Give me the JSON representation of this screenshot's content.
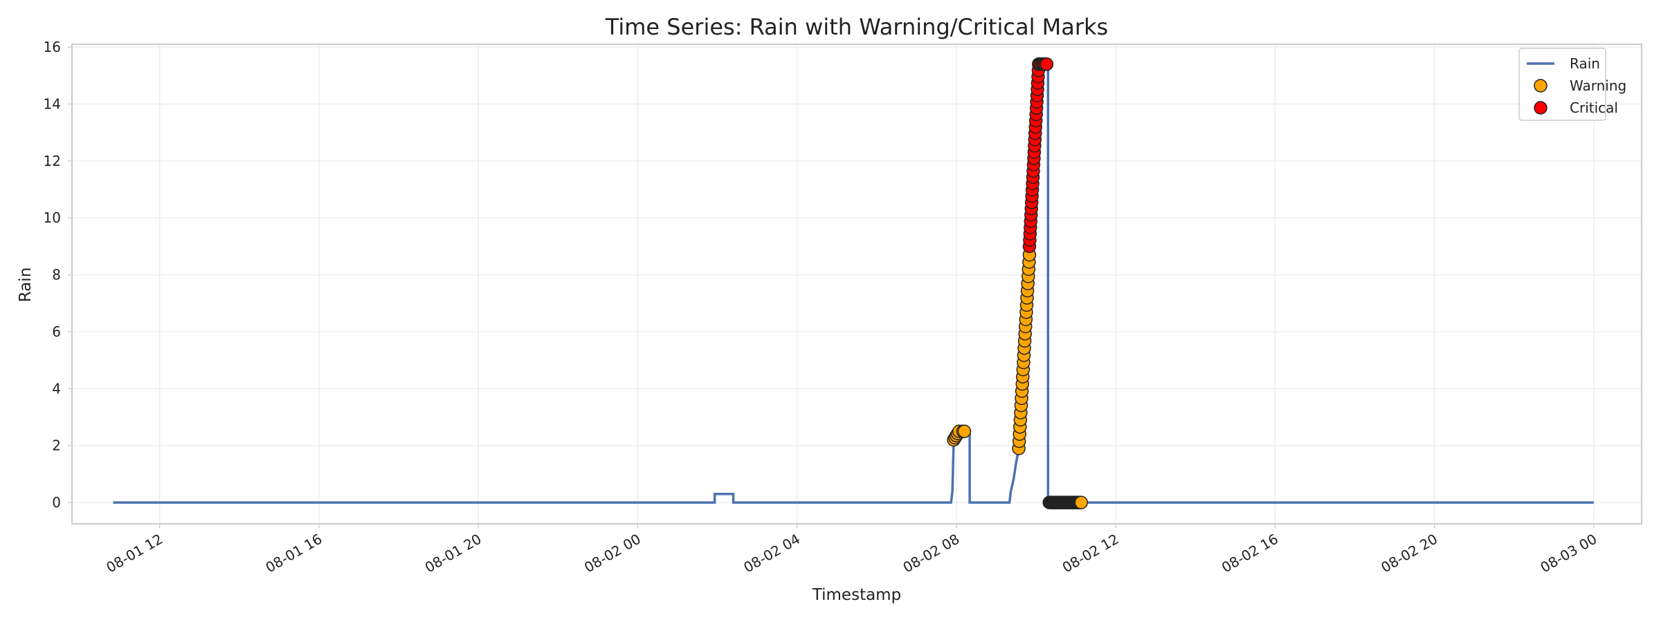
{
  "chart_data": {
    "type": "line",
    "title": "Time Series: Rain with Warning/Critical Marks",
    "xlabel": "Timestamp",
    "ylabel": "Rain",
    "xlim": [
      "2025-08-01 09:48",
      "2025-08-03 01:12"
    ],
    "ylim": [
      -0.75,
      16.1
    ],
    "grid": true,
    "legend_position": "top-right",
    "x_ticks": [
      {
        "label": "08-01 12",
        "t": "2025-08-01 12:00"
      },
      {
        "label": "08-01 16",
        "t": "2025-08-01 16:00"
      },
      {
        "label": "08-01 20",
        "t": "2025-08-01 20:00"
      },
      {
        "label": "08-02 00",
        "t": "2025-08-02 00:00"
      },
      {
        "label": "08-02 04",
        "t": "2025-08-02 04:00"
      },
      {
        "label": "08-02 08",
        "t": "2025-08-02 08:00"
      },
      {
        "label": "08-02 12",
        "t": "2025-08-02 12:00"
      },
      {
        "label": "08-02 16",
        "t": "2025-08-02 16:00"
      },
      {
        "label": "08-02 20",
        "t": "2025-08-02 20:00"
      },
      {
        "label": "08-03 00",
        "t": "2025-08-03 00:00"
      }
    ],
    "y_ticks": [
      0,
      2,
      4,
      6,
      8,
      10,
      12,
      14,
      16
    ],
    "series": [
      {
        "name": "Rain",
        "color": "#4c72b0",
        "step": true,
        "points": [
          [
            "2025-08-01 10:50",
            0
          ],
          [
            "2025-08-02 01:56",
            0
          ],
          [
            "2025-08-02 01:56",
            0.3
          ],
          [
            "2025-08-02 02:24",
            0.3
          ],
          [
            "2025-08-02 02:24",
            0
          ],
          [
            "2025-08-02 07:52",
            0
          ],
          [
            "2025-08-02 07:54",
            0.4
          ],
          [
            "2025-08-02 07:56",
            2.2
          ],
          [
            "2025-08-02 08:00",
            2.5
          ],
          [
            "2025-08-02 08:20",
            2.5
          ],
          [
            "2025-08-02 08:20",
            0
          ],
          [
            "2025-08-02 09:20",
            0
          ],
          [
            "2025-08-02 09:22",
            0.4
          ],
          [
            "2025-08-02 09:26",
            0.8
          ],
          [
            "2025-08-02 09:30",
            1.4
          ],
          [
            "2025-08-02 09:34",
            1.9
          ],
          [
            "2025-08-02 09:40",
            4.0
          ],
          [
            "2025-08-02 09:46",
            7.0
          ],
          [
            "2025-08-02 09:50",
            9.5
          ],
          [
            "2025-08-02 09:54",
            12.5
          ],
          [
            "2025-08-02 09:58",
            14.5
          ],
          [
            "2025-08-02 10:04",
            15.4
          ],
          [
            "2025-08-02 10:18",
            15.4
          ],
          [
            "2025-08-02 10:18",
            0
          ],
          [
            "2025-08-03 00:00",
            0
          ]
        ]
      },
      {
        "name": "Warning",
        "type": "scatter",
        "color": "#ffa500",
        "edge_color": "#222222",
        "groups": [
          {
            "start": "2025-08-02 07:56",
            "end": "2025-08-02 08:04",
            "y_start": 2.2,
            "y_end": 2.5,
            "count": 5
          },
          {
            "start": "2025-08-02 08:10",
            "end": "2025-08-02 08:12",
            "y_start": 2.5,
            "y_end": 2.5,
            "count": 2
          },
          {
            "start": "2025-08-02 09:34",
            "end": "2025-08-02 09:50",
            "y_start": 1.9,
            "y_end": 8.7,
            "count": 28
          },
          {
            "start": "2025-08-02 10:20",
            "end": "2025-08-02 11:08",
            "y_start": 0,
            "y_end": 0,
            "count": 40
          }
        ]
      },
      {
        "name": "Critical",
        "type": "scatter",
        "color": "#ff0000",
        "edge_color": "#222222",
        "groups": [
          {
            "start": "2025-08-02 09:50",
            "end": "2025-08-02 10:04",
            "y_start": 9.0,
            "y_end": 15.4,
            "count": 30
          },
          {
            "start": "2025-08-02 10:04",
            "end": "2025-08-02 10:16",
            "y_start": 15.4,
            "y_end": 15.4,
            "count": 7
          }
        ]
      }
    ]
  }
}
